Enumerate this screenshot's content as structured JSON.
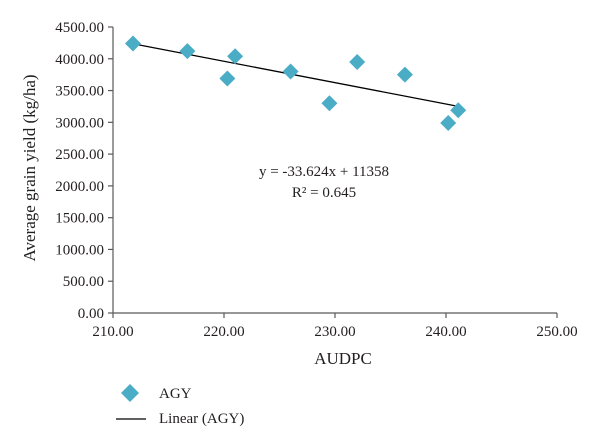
{
  "chart_data": {
    "type": "scatter",
    "xlabel": "AUDPC",
    "ylabel": "Average grain yield (kg/ha)",
    "xlim": [
      210,
      250
    ],
    "ylim": [
      0,
      4500
    ],
    "x_ticks": [
      "210.00",
      "220.00",
      "230.00",
      "240.00",
      "250.00"
    ],
    "y_ticks": [
      "0.00",
      "500.00",
      "1000.00",
      "1500.00",
      "2000.00",
      "2500.00",
      "3000.00",
      "3500.00",
      "4000.00",
      "4500.00"
    ],
    "grid": false,
    "legend_position": "bottom-left",
    "series": [
      {
        "name": "AGY",
        "color": "#4bacc6",
        "marker": "diamond",
        "points": [
          {
            "x": 211.8,
            "y": 4240
          },
          {
            "x": 216.7,
            "y": 4120
          },
          {
            "x": 220.3,
            "y": 3690
          },
          {
            "x": 221.0,
            "y": 4040
          },
          {
            "x": 226.0,
            "y": 3800
          },
          {
            "x": 229.5,
            "y": 3300
          },
          {
            "x": 232.0,
            "y": 3950
          },
          {
            "x": 236.3,
            "y": 3750
          },
          {
            "x": 240.2,
            "y": 2990
          },
          {
            "x": 241.1,
            "y": 3190
          }
        ]
      }
    ],
    "trendline": {
      "name": "Linear (AGY)",
      "slope": -33.624,
      "intercept": 11358,
      "x_range": [
        211.8,
        241.1
      ],
      "color": "#000000"
    },
    "annotations": {
      "equation": "y = -33.624x + 11358",
      "r_squared": "R² = 0.645"
    }
  }
}
